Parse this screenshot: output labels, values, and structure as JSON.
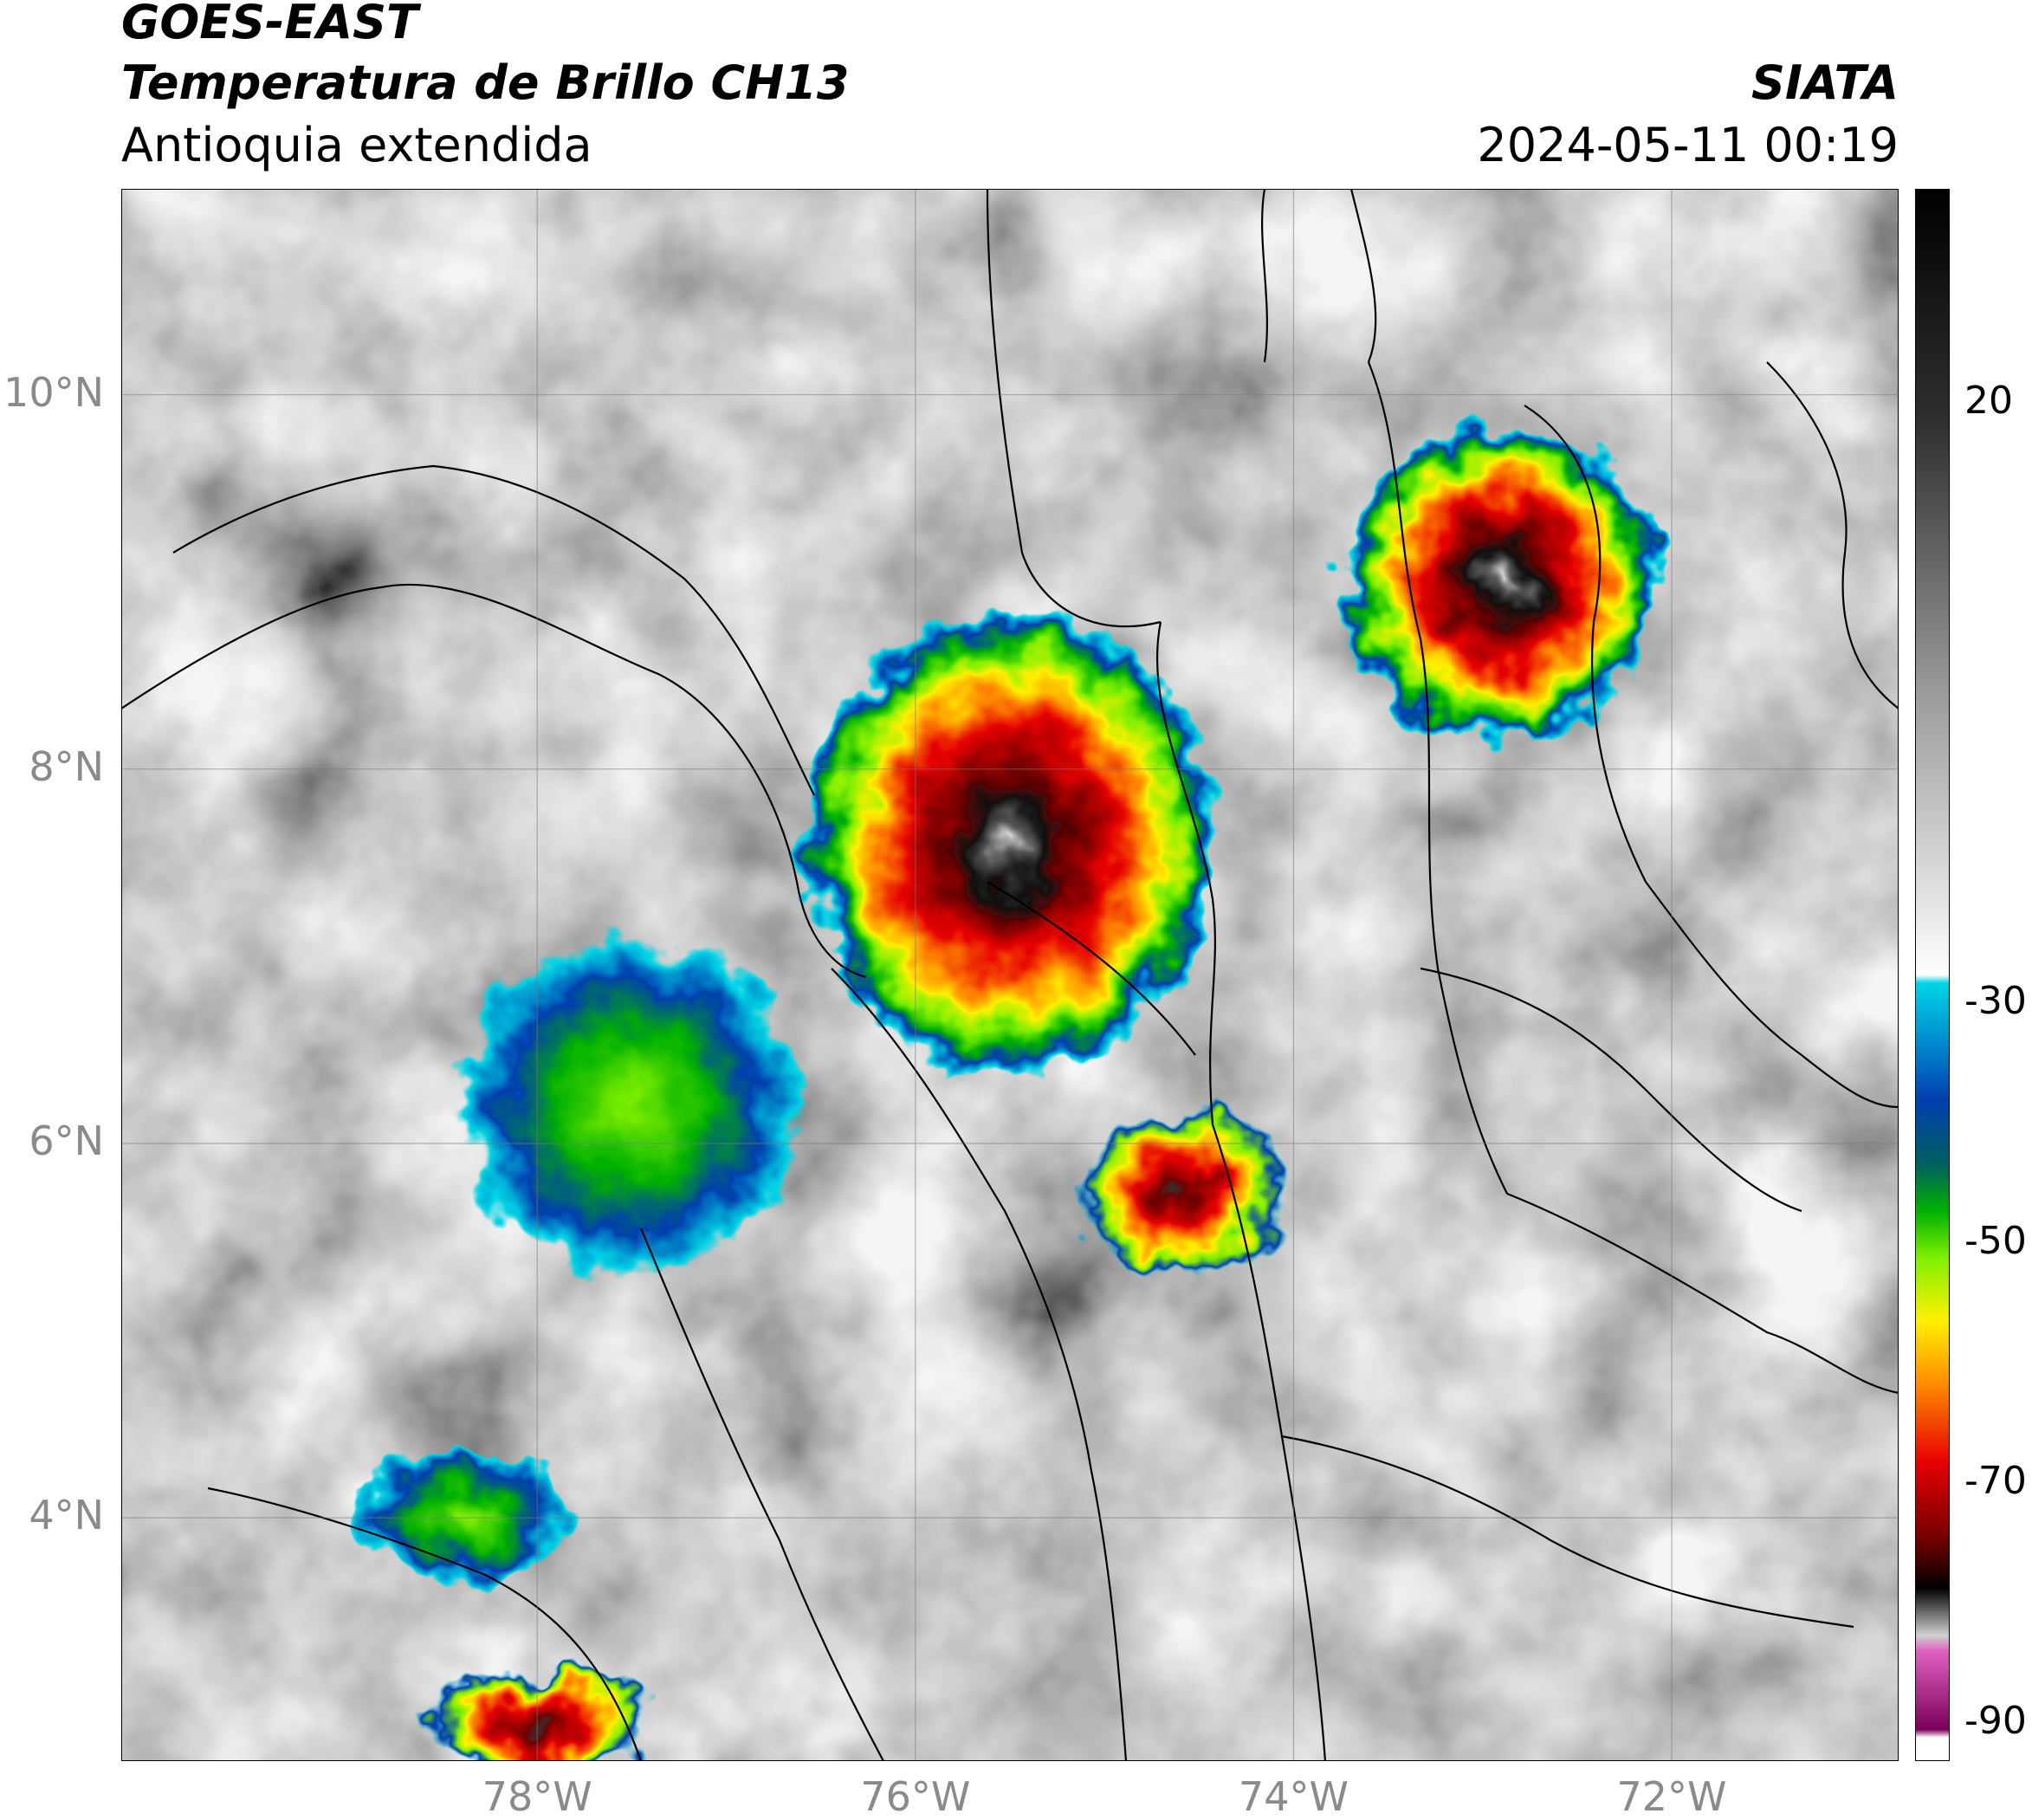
{
  "header": {
    "line1": "GOES-EAST",
    "line2": "Temperatura de Brillo CH13",
    "line3": "Antioquia extendida",
    "source": "SIATA",
    "datetime": "2024-05-11 00:19"
  },
  "map": {
    "lat_ticks": [
      "10°N",
      "8°N",
      "6°N",
      "4°N"
    ],
    "lon_ticks": [
      "78°W",
      "76°W",
      "74°W",
      "72°W"
    ],
    "lat_range": [
      2.7,
      11.1
    ],
    "lon_range": [
      -80.2,
      -70.8
    ],
    "lat_values": [
      10,
      8,
      6,
      4
    ],
    "lon_values": [
      -78,
      -76,
      -74,
      -72
    ],
    "storm_cells": [
      {
        "lon": -75.5,
        "lat": 7.6,
        "rx": 1.1,
        "ry": 1.25,
        "min_temp": -85
      },
      {
        "lon": -72.9,
        "lat": 9.0,
        "rx": 0.85,
        "ry": 0.85,
        "min_temp": -82
      },
      {
        "lon": -74.6,
        "lat": 5.75,
        "rx": 0.55,
        "ry": 0.45,
        "min_temp": -78
      },
      {
        "lon": -77.5,
        "lat": 6.2,
        "rx": 0.9,
        "ry": 0.9,
        "min_temp": -45
      },
      {
        "lon": -78.4,
        "lat": 4.0,
        "rx": 0.55,
        "ry": 0.35,
        "min_temp": -45
      },
      {
        "lon": -78.0,
        "lat": 2.9,
        "rx": 0.6,
        "ry": 0.3,
        "min_temp": -75
      }
    ]
  },
  "colorbar": {
    "tick_labels": [
      "20",
      "-30",
      "-50",
      "-70",
      "-90"
    ],
    "tick_values": [
      20,
      -30,
      -50,
      -70,
      -90
    ],
    "range": [
      -93,
      38
    ],
    "colors": {
      "cyan": "#00d5e6",
      "blue": "#003fae",
      "green": "#00b000",
      "lime": "#7ff000",
      "yellow": "#fff000",
      "orange": "#ff8c00",
      "red": "#e60000",
      "darkred": "#6e0000",
      "black": "#000000",
      "magenta": "#e060c0",
      "purple": "#7a005a"
    }
  }
}
